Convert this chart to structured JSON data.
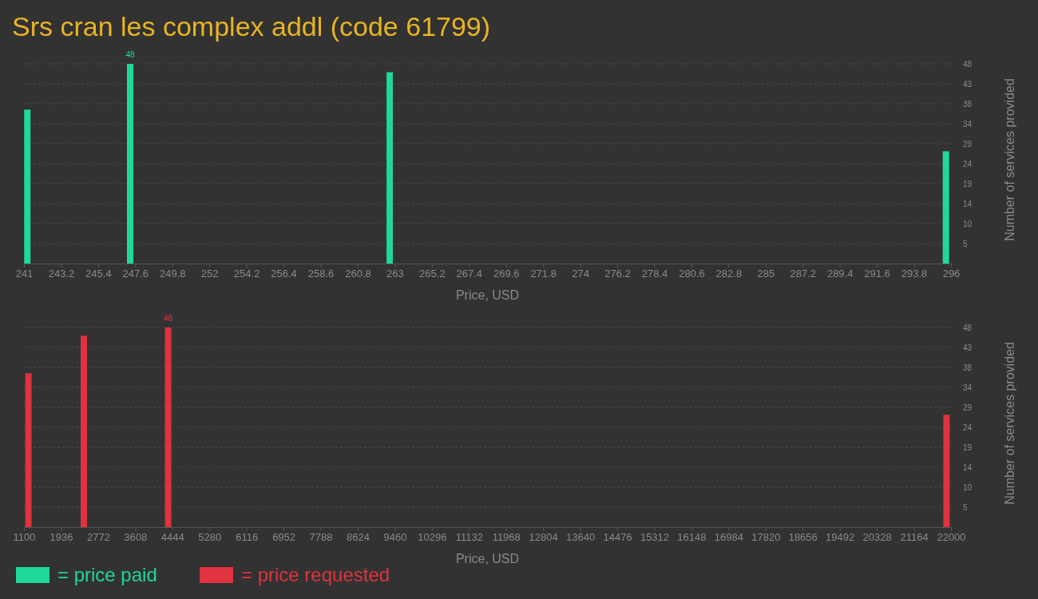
{
  "chart_data": [
    {
      "type": "bar",
      "title": "Srs cran les complex addl (code 61799)",
      "xlabel": "Price, USD",
      "ylabel": "Number of services provided",
      "x": [
        241.2,
        247.3,
        262.7,
        295.7
      ],
      "series": [
        {
          "name": "= price paid",
          "color": "#1fd89a",
          "values": [
            37,
            48,
            46,
            27
          ],
          "value_labels": [
            null,
            "48",
            null,
            null
          ]
        }
      ],
      "xlim": [
        241,
        296
      ],
      "xticks": [
        241,
        243.2,
        245.4,
        247.6,
        249.8,
        252,
        254.2,
        256.4,
        258.6,
        260.8,
        263,
        265.2,
        267.4,
        269.6,
        271.8,
        274,
        276.2,
        278.4,
        280.6,
        282.8,
        285,
        287.2,
        289.4,
        291.6,
        293.8,
        296
      ],
      "ylim": [
        0,
        48
      ],
      "yticks": [
        {
          "value": 4.8,
          "label": "5"
        },
        {
          "value": 9.6,
          "label": "10"
        },
        {
          "value": 14.4,
          "label": "14"
        },
        {
          "value": 19.2,
          "label": "19"
        },
        {
          "value": 24,
          "label": "24"
        },
        {
          "value": 28.8,
          "label": "29"
        },
        {
          "value": 33.6,
          "label": "34"
        },
        {
          "value": 38.4,
          "label": "38"
        },
        {
          "value": 43.2,
          "label": "43"
        },
        48
      ],
      "grid": "y",
      "legend": "bottom left"
    },
    {
      "type": "bar",
      "xlabel": "Price, USD",
      "ylabel": "Number of services provided",
      "x": [
        1200,
        2450,
        4350,
        21900
      ],
      "series": [
        {
          "name": "= price requested",
          "color": "#e0323f",
          "values": [
            37,
            46,
            48,
            27
          ],
          "value_labels": [
            null,
            null,
            "48",
            null
          ]
        }
      ],
      "xlim": [
        1100,
        22000
      ],
      "xticks": [
        1100,
        1936,
        2772,
        3608,
        4444,
        5280,
        6116,
        6952,
        7788,
        8624,
        9460,
        10296,
        11132,
        11968,
        12804,
        13640,
        14476,
        15312,
        16148,
        16984,
        17820,
        18656,
        19492,
        20328,
        21164,
        22000
      ],
      "ylim": [
        0,
        48
      ],
      "yticks": [
        {
          "value": 4.8,
          "label": "5"
        },
        {
          "value": 9.6,
          "label": "10"
        },
        {
          "value": 14.4,
          "label": "14"
        },
        {
          "value": 19.2,
          "label": "19"
        },
        {
          "value": 24,
          "label": "24"
        },
        {
          "value": 28.8,
          "label": "29"
        },
        {
          "value": 33.6,
          "label": "34"
        },
        {
          "value": 38.4,
          "label": "38"
        },
        {
          "value": 43.2,
          "label": "43"
        },
        48
      ],
      "grid": "y",
      "legend": "bottom"
    }
  ]
}
